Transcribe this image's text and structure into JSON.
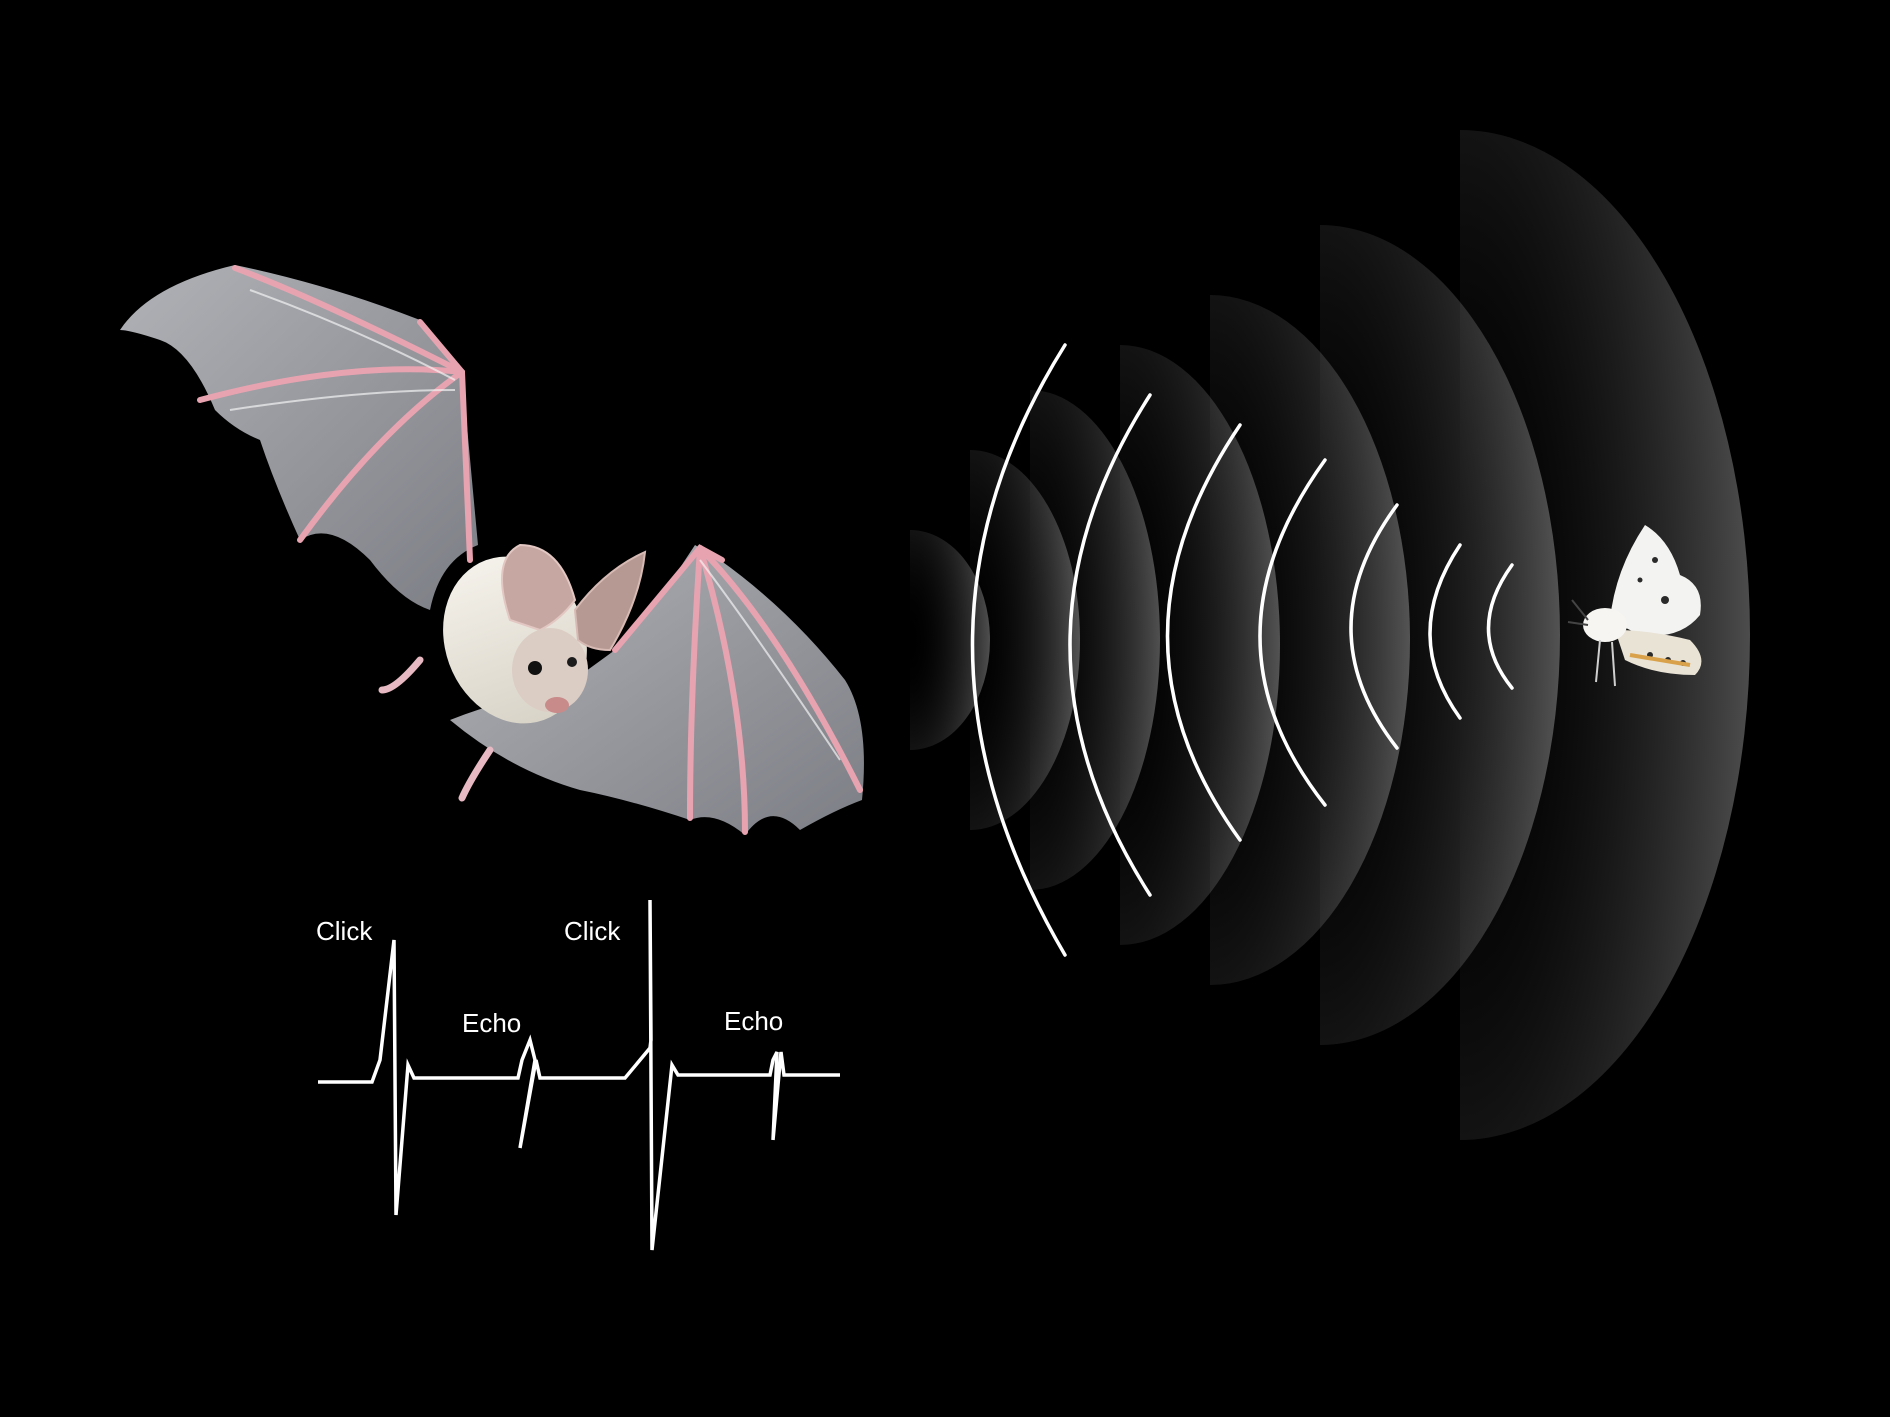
{
  "colors": {
    "background": "#000000",
    "wave_line": "#ffffff",
    "wing_membrane": "#b7b9bf",
    "wing_bones": "#e8a3b0",
    "fur": "#ece8df",
    "moth_body": "#f3f3f1",
    "moth_spots": "#2a2a2a"
  },
  "illustration": {
    "bat": {
      "icon": "bat-icon"
    },
    "moth": {
      "icon": "moth-icon"
    },
    "sound_waves": {
      "arc_count": 7,
      "shaded_band_count": 7
    }
  },
  "waveform": {
    "labels": {
      "click_1": "Click",
      "echo_1": "Echo",
      "click_2": "Click",
      "echo_2": "Echo"
    }
  }
}
